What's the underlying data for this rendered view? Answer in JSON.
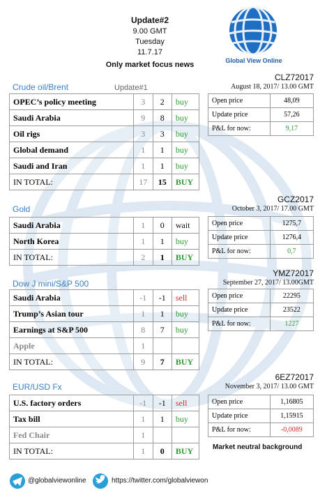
{
  "header": {
    "title": "Update#2",
    "time": "9.00 GMT",
    "day": "Tuesday",
    "date": "11.7.17",
    "subtitle": "Only market focus news"
  },
  "logo_text": "Global View Online",
  "sections": [
    {
      "title": "Crude oil/Brent",
      "update_label": "Update#1",
      "rows": [
        {
          "cells": [
            "OPEC’s policy meeting",
            "3",
            "2",
            "buy"
          ],
          "signal_color": "#2f9a35"
        },
        {
          "cells": [
            "Saudi Arabia",
            "9",
            "8",
            "buy"
          ],
          "signal_color": "#2f9a35"
        },
        {
          "cells": [
            "Oil rigs",
            "3",
            "3",
            "buy"
          ],
          "signal_color": "#2f9a35"
        },
        {
          "cells": [
            "Global demand",
            "1",
            "1",
            "buy"
          ],
          "signal_color": "#2f9a35"
        },
        {
          "cells": [
            "Saudi  and Iran",
            "1",
            "1",
            "buy"
          ],
          "signal_color": "#2f9a35"
        },
        {
          "cells": [
            "IN TOTAL:",
            "17",
            "15",
            "BUY"
          ],
          "signal_color": "#2f9a35",
          "total": true
        }
      ],
      "code": "CLZ72017",
      "date": "August 18, 2017/ 13.00 GMT",
      "prices": [
        [
          "Open price",
          "48,09"
        ],
        [
          "Update price",
          "57,26"
        ],
        [
          "P&L for now:",
          "9,17"
        ]
      ],
      "pl_color": "#2f9a35"
    },
    {
      "title": "Gold",
      "rows": [
        {
          "cells": [
            "Saudi Arabia",
            "1",
            "0",
            "wait"
          ],
          "signal_color": "#111111"
        },
        {
          "cells": [
            "North Korea",
            "1",
            "1",
            "buy"
          ],
          "signal_color": "#2f9a35"
        },
        {
          "cells": [
            "IN TOTAL:",
            "2",
            "1",
            "BUY"
          ],
          "signal_color": "#2f9a35",
          "total": true
        }
      ],
      "code": "GCZ2017",
      "date": "October 3, 2017/ 17.00 GMT",
      "prices": [
        [
          "Open price",
          "1275,7"
        ],
        [
          "Update price",
          "1276,4"
        ],
        [
          "P&L for now:",
          "0,7"
        ]
      ],
      "pl_color": "#2f9a35"
    },
    {
      "title": "Dow J mini/S&P 500",
      "rows": [
        {
          "cells": [
            "Saudi Arabia",
            "-1",
            "-1",
            "sell"
          ],
          "signal_color": "#d62a2a"
        },
        {
          "cells": [
            "Trump’s Asian tour",
            "1",
            "1",
            "buy"
          ],
          "signal_color": "#2f9a35"
        },
        {
          "cells": [
            "Earnings at S&P 500",
            "8",
            "7",
            "buy"
          ],
          "signal_color": "#2f9a35"
        },
        {
          "cells": [
            "Apple",
            "1"
          ],
          "muted": true
        },
        {
          "cells": [
            "IN TOTAL:",
            "9",
            "7",
            "BUY"
          ],
          "signal_color": "#2f9a35",
          "total": true
        }
      ],
      "code": "YMZ72017",
      "date": "September 27, 2017/ 13.00GMT",
      "prices": [
        [
          "Open price",
          "22295"
        ],
        [
          "Update price",
          "23522"
        ],
        [
          "P&L for now:",
          "1227"
        ]
      ],
      "pl_color": "#2f9a35"
    },
    {
      "title": "EUR/USD Fx",
      "rows": [
        {
          "cells": [
            "U.S. factory orders",
            "-1",
            "-1",
            "sell"
          ],
          "signal_color": "#d62a2a"
        },
        {
          "cells": [
            "Tax bill",
            "1",
            "1",
            "buy"
          ],
          "signal_color": "#2f9a35"
        },
        {
          "cells": [
            "Fed Chair",
            "1"
          ],
          "muted": true
        },
        {
          "cells": [
            "IN TOTAL:",
            "1",
            "0",
            "BUY"
          ],
          "signal_color": "#2f9a35",
          "total": true
        }
      ],
      "code": "6EZ72017",
      "date": "November 3, 2017/ 13.00 GMT",
      "prices": [
        [
          "Open price",
          "1,16805"
        ],
        [
          "Update price",
          "1,15915"
        ],
        [
          "P&L for now:",
          "-0,0089"
        ]
      ],
      "pl_color": "#d62a2a",
      "note": "Market neutral background"
    }
  ],
  "footer": {
    "telegram": "@globalviewonline",
    "twitter": "https://twitter.com/globalviewon"
  }
}
